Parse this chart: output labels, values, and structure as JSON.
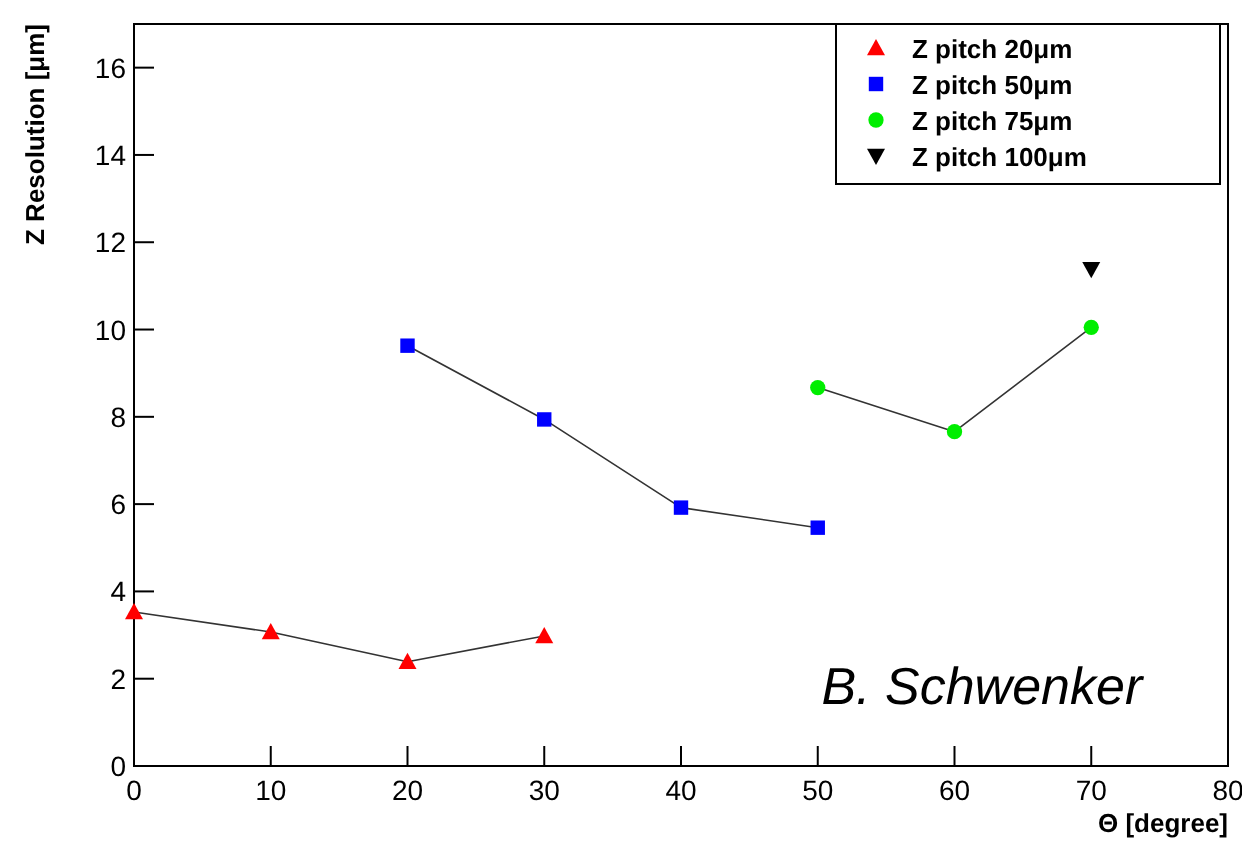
{
  "chart_data": {
    "type": "line",
    "xlabel": "Θ [degree]",
    "ylabel": "Z Resolution [μm]",
    "xlim": [
      0,
      80
    ],
    "ylim": [
      0,
      17
    ],
    "xticks": [
      0,
      10,
      20,
      30,
      40,
      50,
      60,
      70,
      80
    ],
    "yticks": [
      0,
      2,
      4,
      6,
      8,
      10,
      12,
      14,
      16
    ],
    "grid": false,
    "legend": "top right",
    "line_style": "solid",
    "series": [
      {
        "name": "Z pitch 20μm",
        "color": "#ff0000",
        "marker": "triangle",
        "x": [
          0,
          10,
          20,
          30
        ],
        "values": [
          3.53,
          3.07,
          2.39,
          2.98
        ]
      },
      {
        "name": "Z pitch 50μm",
        "color": "#0000ff",
        "marker": "square",
        "x": [
          20,
          30,
          40,
          50
        ],
        "values": [
          9.63,
          7.94,
          5.92,
          5.46
        ]
      },
      {
        "name": "Z pitch 75μm",
        "color": "#00ee00",
        "marker": "circle",
        "x": [
          50,
          60,
          70
        ],
        "values": [
          8.67,
          7.66,
          10.05
        ]
      },
      {
        "name": "Z pitch 100μm",
        "color": "#000000",
        "marker": "triangle-down",
        "x": [
          70
        ],
        "values": [
          11.38
        ]
      }
    ],
    "annotations": [
      "B. Schwenker"
    ]
  }
}
